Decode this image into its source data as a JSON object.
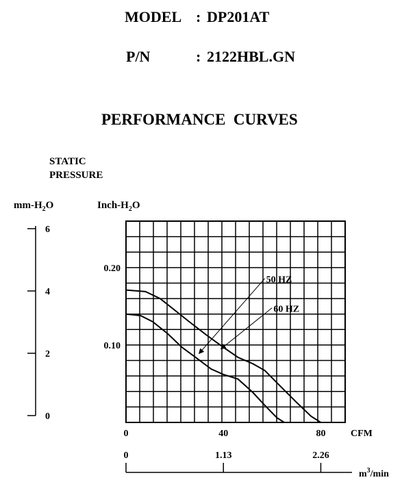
{
  "header": {
    "model_label": "MODEL",
    "model_value": "DP201AT",
    "pn_label": "P/N",
    "pn_value": "2122HBL.GN",
    "section_title": "PERFORMANCE  CURVES"
  },
  "chart_data": {
    "type": "line",
    "title": "PERFORMANCE  CURVES",
    "ylabel_lines": [
      "STATIC",
      "PRESSURE"
    ],
    "y_unit_left": "mm-H2O",
    "y_unit_right": "Inch-H2O",
    "x_unit": "CFM",
    "x2_unit": "m3/min",
    "xlim": [
      0,
      90
    ],
    "ylim": [
      0,
      0.26
    ],
    "mm_axis": {
      "min": 0,
      "max": 6,
      "ticks": [
        "0",
        "2",
        "4",
        "6"
      ]
    },
    "inch_ticks": [
      {
        "value": 0.1,
        "label": "0.10"
      },
      {
        "value": 0.2,
        "label": "0.20"
      }
    ],
    "cfm_ticks": [
      {
        "value": 0,
        "label": "0"
      },
      {
        "value": 40,
        "label": "40"
      },
      {
        "value": 80,
        "label": "80"
      }
    ],
    "m3_ticks": [
      {
        "value": 0,
        "label": "0"
      },
      {
        "value": 40,
        "label": "1.13"
      },
      {
        "value": 80,
        "label": "2.26"
      }
    ],
    "grid": true,
    "series": [
      {
        "name": "50 HZ",
        "label_at": [
          57,
          0.186
        ],
        "arrow_to": [
          30,
          0.089
        ],
        "points": [
          [
            0,
            0.171
          ],
          [
            8,
            0.169
          ],
          [
            14,
            0.16
          ],
          [
            20,
            0.145
          ],
          [
            26,
            0.13
          ],
          [
            33,
            0.113
          ],
          [
            40,
            0.097
          ],
          [
            46,
            0.084
          ],
          [
            52,
            0.076
          ],
          [
            57,
            0.067
          ],
          [
            63,
            0.048
          ],
          [
            70,
            0.026
          ],
          [
            76,
            0.008
          ],
          [
            80,
            0
          ]
        ]
      },
      {
        "name": "60 HZ",
        "label_at": [
          60,
          0.148
        ],
        "arrow_to": [
          39,
          0.095
        ],
        "points": [
          [
            0,
            0.14
          ],
          [
            6,
            0.138
          ],
          [
            11,
            0.13
          ],
          [
            17,
            0.115
          ],
          [
            23,
            0.097
          ],
          [
            29,
            0.083
          ],
          [
            35,
            0.069
          ],
          [
            40,
            0.062
          ],
          [
            46,
            0.056
          ],
          [
            52,
            0.039
          ],
          [
            57,
            0.022
          ],
          [
            62,
            0.006
          ],
          [
            65,
            0
          ]
        ]
      }
    ]
  }
}
